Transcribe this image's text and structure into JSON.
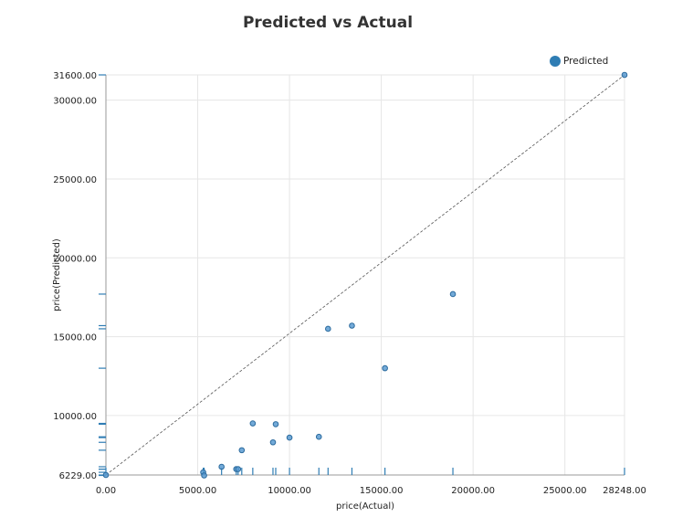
{
  "chart_data": {
    "type": "scatter",
    "title": "Predicted vs Actual",
    "xlabel": "price(Actual)",
    "ylabel": "price(Predicted)",
    "xlim": [
      0,
      28248
    ],
    "ylim": [
      6229,
      31600
    ],
    "x_ticks": [
      "0.00",
      "5000.00",
      "10000.00",
      "15000.00",
      "20000.00",
      "25000.00",
      "28248.00"
    ],
    "y_ticks": [
      "6229.00",
      "10000.00",
      "15000.00",
      "20000.00",
      "25000.00",
      "30000.00",
      "31600.00"
    ],
    "grid": true,
    "legend_position": "top-right",
    "reference_line": "y = x",
    "color": "#2f7db4",
    "series": [
      {
        "name": "Predicted",
        "points": [
          {
            "x": 0,
            "y": 6229
          },
          {
            "x": 5300,
            "y": 6400
          },
          {
            "x": 5350,
            "y": 6200
          },
          {
            "x": 6300,
            "y": 6750
          },
          {
            "x": 7100,
            "y": 6600
          },
          {
            "x": 7200,
            "y": 6600
          },
          {
            "x": 7400,
            "y": 7800
          },
          {
            "x": 8000,
            "y": 9500
          },
          {
            "x": 9100,
            "y": 8300
          },
          {
            "x": 9250,
            "y": 9450
          },
          {
            "x": 10000,
            "y": 8600
          },
          {
            "x": 11600,
            "y": 8650
          },
          {
            "x": 12100,
            "y": 15500
          },
          {
            "x": 13400,
            "y": 15700
          },
          {
            "x": 15200,
            "y": 13000
          },
          {
            "x": 18900,
            "y": 17700
          },
          {
            "x": 28248,
            "y": 31600
          }
        ]
      }
    ]
  }
}
